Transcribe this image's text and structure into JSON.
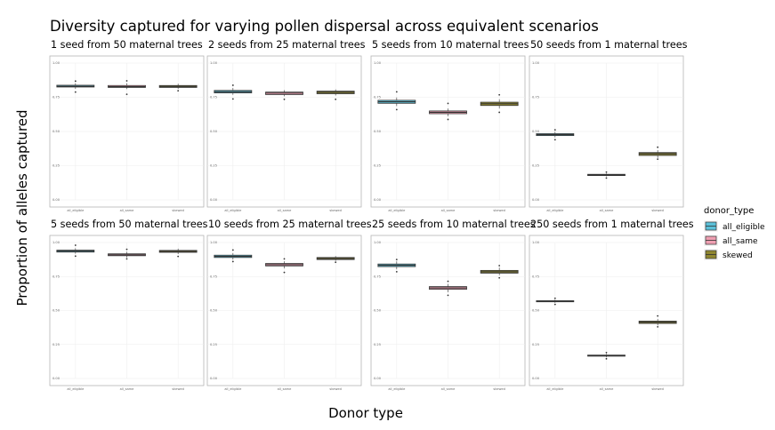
{
  "chart_data": {
    "type": "box",
    "title": "Diversity captured for varying pollen dispersal across equivalent scenarios",
    "xlabel": "Donor type",
    "ylabel": "Proportion of alleles captured",
    "categories": [
      "all_eligible",
      "all_same",
      "skewed"
    ],
    "ylim": [
      0.0,
      1.0
    ],
    "yticks": [
      "0.00",
      "0.25",
      "0.50",
      "0.75",
      "1.00"
    ],
    "grid": true,
    "legend": {
      "title": "donor_type",
      "position": "right",
      "entries": [
        "all_eligible",
        "all_same",
        "skewed"
      ]
    },
    "colors": {
      "all_eligible": "#5bc0d8",
      "all_same": "#ef9fb2",
      "skewed": "#8f8630",
      "box_outline": "#333333",
      "panel_border": "#b5b5b5",
      "grid": "#eeeeee"
    },
    "panels": [
      {
        "label": "1 seed from 50 maternal trees",
        "series": [
          {
            "name": "all_eligible",
            "q1": 0.825,
            "median": 0.83,
            "q3": 0.838,
            "min": 0.812,
            "max": 0.852,
            "outliers": [
              0.868,
              0.788
            ]
          },
          {
            "name": "all_same",
            "q1": 0.822,
            "median": 0.828,
            "q3": 0.836,
            "min": 0.81,
            "max": 0.852,
            "outliers": [
              0.87,
              0.772
            ]
          },
          {
            "name": "skewed",
            "q1": 0.822,
            "median": 0.829,
            "q3": 0.836,
            "min": 0.812,
            "max": 0.849,
            "outliers": [
              0.798
            ]
          }
        ]
      },
      {
        "label": "2 seeds from 25 maternal trees",
        "series": [
          {
            "name": "all_eligible",
            "q1": 0.782,
            "median": 0.79,
            "q3": 0.8,
            "min": 0.768,
            "max": 0.818,
            "outliers": [
              0.838,
              0.738
            ]
          },
          {
            "name": "all_same",
            "q1": 0.77,
            "median": 0.78,
            "q3": 0.788,
            "min": 0.757,
            "max": 0.802,
            "outliers": [
              0.735
            ]
          },
          {
            "name": "skewed",
            "q1": 0.776,
            "median": 0.786,
            "q3": 0.795,
            "min": 0.763,
            "max": 0.808,
            "outliers": [
              0.735
            ]
          }
        ]
      },
      {
        "label": "5 seeds from 10 maternal trees",
        "series": [
          {
            "name": "all_eligible",
            "q1": 0.706,
            "median": 0.717,
            "q3": 0.728,
            "min": 0.686,
            "max": 0.748,
            "outliers": [
              0.79,
              0.66
            ]
          },
          {
            "name": "all_same",
            "q1": 0.63,
            "median": 0.64,
            "q3": 0.65,
            "min": 0.612,
            "max": 0.668,
            "outliers": [
              0.705,
              0.588
            ]
          },
          {
            "name": "skewed",
            "q1": 0.69,
            "median": 0.703,
            "q3": 0.714,
            "min": 0.668,
            "max": 0.735,
            "outliers": [
              0.768,
              0.64
            ]
          }
        ]
      },
      {
        "label": "50 seeds from 1 maternal trees",
        "series": [
          {
            "name": "all_eligible",
            "q1": 0.47,
            "median": 0.477,
            "q3": 0.484,
            "min": 0.457,
            "max": 0.498,
            "outliers": [
              0.512,
              0.44
            ]
          },
          {
            "name": "all_same",
            "q1": 0.178,
            "median": 0.182,
            "q3": 0.187,
            "min": 0.172,
            "max": 0.193,
            "outliers": [
              0.203,
              0.16
            ]
          },
          {
            "name": "skewed",
            "q1": 0.325,
            "median": 0.337,
            "q3": 0.346,
            "min": 0.306,
            "max": 0.364,
            "outliers": [
              0.385,
              0.298
            ]
          }
        ]
      },
      {
        "label": "5 seeds from 50 maternal trees",
        "series": [
          {
            "name": "all_eligible",
            "q1": 0.93,
            "median": 0.937,
            "q3": 0.944,
            "min": 0.918,
            "max": 0.958,
            "outliers": [
              0.98,
              0.9
            ]
          },
          {
            "name": "all_same",
            "q1": 0.903,
            "median": 0.91,
            "q3": 0.917,
            "min": 0.89,
            "max": 0.932,
            "outliers": [
              0.95,
              0.88
            ]
          },
          {
            "name": "skewed",
            "q1": 0.928,
            "median": 0.935,
            "q3": 0.942,
            "min": 0.915,
            "max": 0.955,
            "outliers": [
              0.898
            ]
          }
        ]
      },
      {
        "label": "10 seeds from 25 maternal trees",
        "series": [
          {
            "name": "all_eligible",
            "q1": 0.89,
            "median": 0.898,
            "q3": 0.907,
            "min": 0.875,
            "max": 0.922,
            "outliers": [
              0.945,
              0.86
            ]
          },
          {
            "name": "all_same",
            "q1": 0.828,
            "median": 0.837,
            "q3": 0.846,
            "min": 0.81,
            "max": 0.862,
            "outliers": [
              0.88,
              0.78
            ]
          },
          {
            "name": "skewed",
            "q1": 0.875,
            "median": 0.882,
            "q3": 0.89,
            "min": 0.865,
            "max": 0.9,
            "outliers": [
              0.855
            ]
          }
        ]
      },
      {
        "label": "25 seeds from 10 maternal trees",
        "series": [
          {
            "name": "all_eligible",
            "q1": 0.823,
            "median": 0.833,
            "q3": 0.842,
            "min": 0.803,
            "max": 0.862,
            "outliers": [
              0.875,
              0.785
            ]
          },
          {
            "name": "all_same",
            "q1": 0.656,
            "median": 0.666,
            "q3": 0.676,
            "min": 0.635,
            "max": 0.695,
            "outliers": [
              0.715,
              0.612
            ]
          },
          {
            "name": "skewed",
            "q1": 0.775,
            "median": 0.785,
            "q3": 0.795,
            "min": 0.76,
            "max": 0.815,
            "outliers": [
              0.83,
              0.74
            ]
          }
        ]
      },
      {
        "label": "250 seeds from 1 maternal trees",
        "series": [
          {
            "name": "all_eligible",
            "q1": 0.564,
            "median": 0.568,
            "q3": 0.572,
            "min": 0.556,
            "max": 0.58,
            "outliers": [
              0.59,
              0.545
            ]
          },
          {
            "name": "all_same",
            "q1": 0.164,
            "median": 0.168,
            "q3": 0.172,
            "min": 0.156,
            "max": 0.18,
            "outliers": [
              0.19,
              0.145
            ]
          },
          {
            "name": "skewed",
            "q1": 0.405,
            "median": 0.414,
            "q3": 0.422,
            "min": 0.39,
            "max": 0.438,
            "outliers": [
              0.46,
              0.38
            ]
          }
        ]
      }
    ]
  }
}
